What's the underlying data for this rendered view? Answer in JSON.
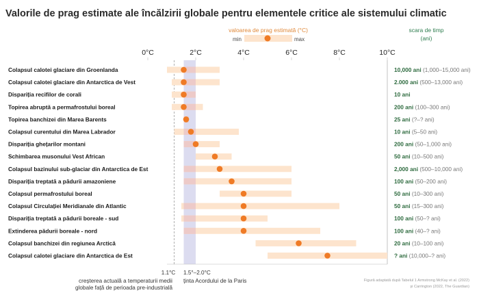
{
  "chart_data": {
    "type": "range-dot",
    "title": "Valorile de prag estimate ale încălzirii globale pentru elementele critice ale sistemului climatic",
    "legend": {
      "title": "valoarea de prag estimată (°C)",
      "min_label": "min",
      "max_label": "max",
      "timescale_title_line1": "scara de timp",
      "timescale_title_line2": "(ani)"
    },
    "x_ticks": [
      "0°C",
      "2°C",
      "4°C",
      "6°C",
      "8°C",
      "10°C"
    ],
    "x_tick_values": [
      0,
      2,
      4,
      6,
      8,
      10
    ],
    "xlim": [
      0,
      10
    ],
    "current_warming": {
      "value": 1.1,
      "label": "1.1°C",
      "desc_line1": "creșterea actuală a temperaturii medii",
      "desc_line2": "globale față de perioada pre-industrială"
    },
    "paris_band": {
      "min": 1.5,
      "max": 2.0,
      "label": "1.5°–2.0°C",
      "desc": "ținta Acordului de la Paris"
    },
    "colors": {
      "dot": "#ef7b26",
      "range": "#fde4cd",
      "range_in_band": "#eac5c7",
      "band": "#dcdcf0",
      "timescale": "#2e6b3f",
      "legend_title": "#e0893a"
    },
    "items": [
      {
        "name": "Colapsul calotei glaciare din Groenlanda",
        "min": 0.8,
        "max": 3.0,
        "value": 1.5,
        "timescale": "10,000 ani",
        "timescale_range": "(1,000–15,000 ani)"
      },
      {
        "name": "Colapsul calotei glaciare din Antarctica de Vest",
        "min": 1.0,
        "max": 3.0,
        "value": 1.5,
        "timescale": "2.000 ani",
        "timescale_range": "(500–13,000 ani)"
      },
      {
        "name": "Dispariția recifilor de corali",
        "min": 1.0,
        "max": 2.0,
        "value": 1.5,
        "timescale": "10 ani",
        "timescale_range": ""
      },
      {
        "name": "Topirea abruptă a permafrostului boreal",
        "min": 1.0,
        "max": 2.3,
        "value": 1.5,
        "timescale": "200 ani",
        "timescale_range": "(100–300 ani)"
      },
      {
        "name": "Topirea banchizei din Marea Barents",
        "min": 1.5,
        "max": 1.7,
        "value": 1.6,
        "timescale": "25 ani",
        "timescale_range": "(?–? ani)"
      },
      {
        "name": "Colapsul curentului din Marea Labrador",
        "min": 1.1,
        "max": 3.8,
        "value": 1.8,
        "timescale": "10 ani",
        "timescale_range": "(5–50 ani)"
      },
      {
        "name": "Dispariția ghețarilor montani",
        "min": 1.5,
        "max": 3.0,
        "value": 2.0,
        "timescale": "200 ani",
        "timescale_range": "(50–1,000 ani)"
      },
      {
        "name": "Schimbarea musonului Vest African",
        "min": 2.0,
        "max": 3.5,
        "value": 2.8,
        "timescale": "50 ani",
        "timescale_range": "(10–500 ani)"
      },
      {
        "name": "Colapsul bazinului sub-glaciar din Antarctica de Est",
        "min": 1.5,
        "max": 6.0,
        "value": 3.0,
        "timescale": "2,000 ani",
        "timescale_range": "(500–10,000 ani)"
      },
      {
        "name": "Dispariția treptată a pădurii amazoniene",
        "min": 1.5,
        "max": 6.0,
        "value": 3.5,
        "timescale": "100 ani",
        "timescale_range": "(50–200 ani)"
      },
      {
        "name": "Colapsul permafrostului boreal",
        "min": 3.0,
        "max": 6.0,
        "value": 4.0,
        "timescale": "50 ani",
        "timescale_range": "(10–300 ani)"
      },
      {
        "name": "Colapsul Circulației Meridianale din Atlantic",
        "min": 1.4,
        "max": 8.0,
        "value": 4.0,
        "timescale": "50 ani",
        "timescale_range": "(15–300 ani)"
      },
      {
        "name": "Dispariția treptată a pădurii boreale - sud",
        "min": 1.4,
        "max": 5.0,
        "value": 4.0,
        "timescale": "100 ani",
        "timescale_range": "(50–? ani)"
      },
      {
        "name": "Extinderea pădurii boreale - nord",
        "min": 1.5,
        "max": 7.2,
        "value": 4.0,
        "timescale": "100 ani",
        "timescale_range": "(40–? ani)"
      },
      {
        "name": "Colapsul banchizei din regiunea Arctică",
        "min": 4.5,
        "max": 8.7,
        "value": 6.3,
        "timescale": "20 ani",
        "timescale_range": "(10–100 ani)"
      },
      {
        "name": "Colapsul calotei glaciare din Antarctica de Est",
        "min": 5.0,
        "max": 10.0,
        "value": 7.5,
        "timescale": "? ani",
        "timescale_range": "(10,000–? ani)"
      }
    ],
    "source_line1": "Figură adaptată după Tabelul 1 Armstrong McKay et al. (2022)",
    "source_line2": "și Carrington (2022, The Guardian)"
  }
}
